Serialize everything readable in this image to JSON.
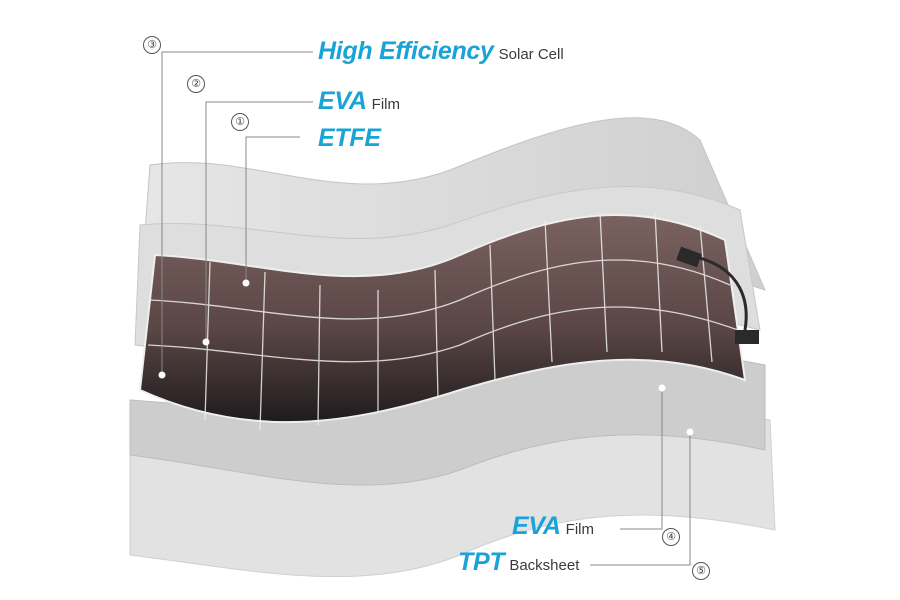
{
  "layers": [
    {
      "number": "①",
      "strong": "ETFE",
      "small": ""
    },
    {
      "number": "②",
      "strong": "EVA",
      "small": "Film"
    },
    {
      "number": "③",
      "strong": "High Efficiency",
      "small": "Solar Cell"
    },
    {
      "number": "④",
      "strong": "EVA",
      "small": "Film"
    },
    {
      "number": "⑤",
      "strong": "TPT",
      "small": "Backsheet"
    }
  ],
  "colors": {
    "accent": "#1aa3d6",
    "layer_light": "#e3e3e3",
    "layer_mid": "#c9c9c9",
    "cell_dark": "#1f1b1d",
    "cell_brown": "#6b5452"
  }
}
